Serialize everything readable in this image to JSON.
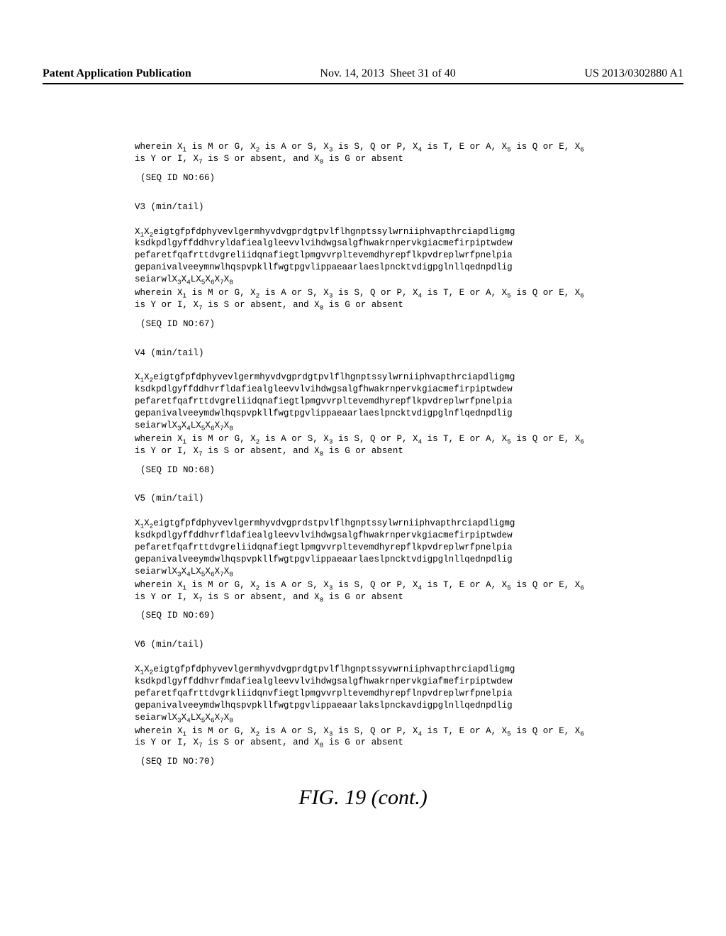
{
  "header": {
    "left": "Patent Application Publication",
    "date": "Nov. 14, 2013",
    "sheet": "Sheet 31 of 40",
    "pubno": "US 2013/0302880 A1"
  },
  "sequences": [
    {
      "wherein": "wherein X₁ is M or G, X₂ is A or S, X₃ is S, Q or P, X₄ is T, E or A, X₅ is Q or E, X₆ is Y or I, X₇ is S or absent, and X₈ is G or absent",
      "id": "(SEQ ID NO:66)"
    },
    {
      "title": "V3 (min/tail)",
      "lines": [
        "X₁X₂eigtgfpfdphyvevlgermhyvdvgprdgtpvlflhgnptssylwrniiphvapthrciapdligmg",
        "ksdkpdlgyffddhvryldafiealgleevvlvihdwgsalgfhwakrnpervkgiacmefirpiptwdew",
        "pefaretfqafrttdvgreliidqnafiegtlpmgvvrpltevemdhyrepflkpvdreplwrfpnelpia",
        "gepanivalveeymnwlhqspvpkllfwgtpgvlippaeaarlaeslpncktvdigpglnllqednpdlig",
        "seiarwlX₃X₄LX₅X₆X₇X₈"
      ],
      "wherein": "wherein X₁ is M or G, X₂ is A or S, X₃ is S, Q or P, X₄ is T, E or A, X₅ is Q or E, X₆ is Y or I, X₇ is S or absent, and X₈ is G or absent",
      "id": "(SEQ ID NO:67)"
    },
    {
      "title": "V4 (min/tail)",
      "lines": [
        "X₁X₂eigtgfpfdphyvevlgermhyvdvgprdgtpvlflhgnptssylwrniiphvapthrciapdligmg",
        "ksdkpdlgyffddhvrfldafiealgleevvlvihdwgsalgfhwakrnpervkgiacmefirpiptwdew",
        "pefaretfqafrttdvgreliidqnafiegtlpmgvvrpltevemdhyrepflkpvdreplwrfpnelpia",
        "gepanivalveeymdwlhqspvpkllfwgtpgvlippaeaarlaeslpncktvdigpglnflqednpdlig",
        "seiarwlX₃X₄LX₅X₆X₇X₈"
      ],
      "wherein": "wherein X₁ is M or G, X₂ is A or S, X₃ is S, Q or P, X₄ is T, E or A, X₅ is Q or E, X₆ is Y or I, X₇ is S or absent, and X₈ is G or absent",
      "id": "(SEQ ID NO:68)"
    },
    {
      "title": "V5 (min/tail)",
      "lines": [
        "X₁X₂eigtgfpfdphyvevlgermhyvdvgprdstpvlflhgnptssylwrniiphvapthrciapdligmg",
        "ksdkpdlgyffddhvrfldafiealgleevvlvihdwgsalgfhwakrnpervkgiacmefirpiptwdew",
        "pefaretfqafrttdvgreliidqnafiegtlpmgvvrpltevemdhyrepflkpvdreplwrfpnelpia",
        "gepanivalveeymdwlhqspvpkllfwgtpgvlippaeaarlaeslpncktvdigpglnllqednpdlig",
        "seiarwlX₃X₄LX₅X₆X₇X₈"
      ],
      "wherein": "wherein X₁ is M or G, X₂ is A or S, X₃ is S, Q or P, X₄ is T, E or A, X₅ is Q or E, X₆ is Y or I, X₇ is S or absent, and X₈ is G or absent",
      "id": "(SEQ ID NO:69)"
    },
    {
      "title": "V6 (min/tail)",
      "lines": [
        "X₁X₂eigtgfpfdphyvevlgermhyvdvgprdgtpvlflhgnptssyvwrniiphvapthrciapdligmg",
        "ksdkpdlgyffddhvrfmdafiealgleevvlvihdwgsalgfhwakrnpervkgiafmefirpiptwdew",
        "pefaretfqafrttdvgrkliidqnvfiegtlpmgvvrpltevemdhyrepflnpvdreplwrfpnelpia",
        "gepanivalveeymdwlhqspvpkllfwgtpgvlippaeaarlakslpnckavdigpglnllqednpdlig",
        "seiarwlX₃X₄LX₅X₆X₇X₈"
      ],
      "wherein": "wherein X₁ is M or G, X₂ is A or S, X₃ is S, Q or P, X₄ is T, E or A, X₅ is Q or E, X₆ is Y or I, X₇ is S or absent, and X₈ is G or absent",
      "id": "(SEQ ID NO:70)"
    }
  ],
  "figure_caption": "FIG. 19 (cont.)"
}
